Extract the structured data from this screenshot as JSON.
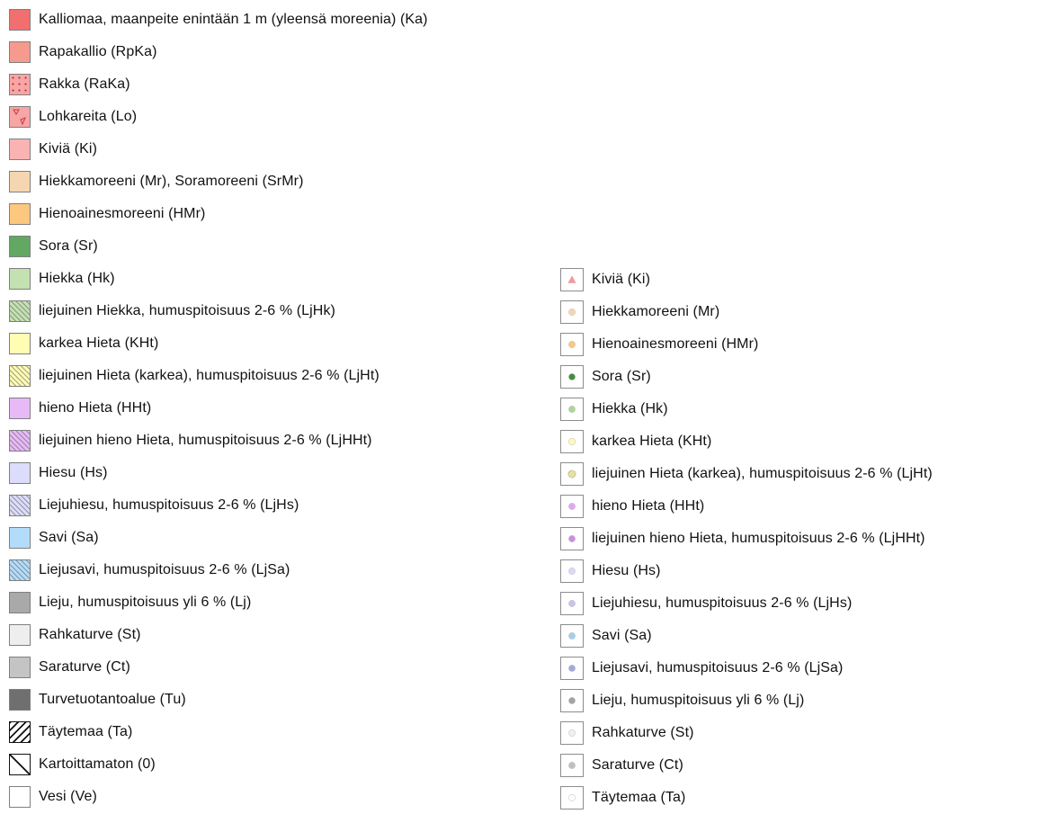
{
  "legend_left": [
    {
      "label": "Kalliomaa, maanpeite enintään 1 m (yleensä moreenia) (Ka)",
      "color": "#f26f6f",
      "pattern": "solid"
    },
    {
      "label": "Rapakallio (RpKa)",
      "color": "#f59a8c",
      "pattern": "solid"
    },
    {
      "label": "Rakka (RaKa)",
      "color": "#f7a5a5",
      "pattern": "dots"
    },
    {
      "label": "Lohkareita (Lo)",
      "color": "#f7a5a5",
      "pattern": "triangles"
    },
    {
      "label": "Kiviä (Ki)",
      "color": "#f9b3b3",
      "pattern": "solid"
    },
    {
      "label": "Hiekkamoreeni (Mr), Soramoreeni (SrMr)",
      "color": "#f6d6b0",
      "pattern": "solid"
    },
    {
      "label": "Hienoainesmoreeni (HMr)",
      "color": "#fcc77e",
      "pattern": "solid"
    },
    {
      "label": "Sora (Sr)",
      "color": "#62a862",
      "pattern": "solid"
    },
    {
      "label": "Hiekka (Hk)",
      "color": "#c3e1b1",
      "pattern": "solid"
    },
    {
      "label": "liejuinen Hiekka, humuspitoisuus 2-6 % (LjHk)",
      "color": "#c3e1b1",
      "pattern": "hatch"
    },
    {
      "label": "karkea Hieta (KHt)",
      "color": "#fffcb3",
      "pattern": "solid"
    },
    {
      "label": "liejuinen Hieta (karkea), humuspitoisuus 2-6 % (LjHt)",
      "color": "#fffcb3",
      "pattern": "hatch"
    },
    {
      "label": "hieno Hieta (HHt)",
      "color": "#e7b9f6",
      "pattern": "solid"
    },
    {
      "label": "liejuinen hieno Hieta, humuspitoisuus 2-6 % (LjHHt)",
      "color": "#e7b9f6",
      "pattern": "hatch"
    },
    {
      "label": "Hiesu (Hs)",
      "color": "#dcdcfb",
      "pattern": "solid"
    },
    {
      "label": "Liejuhiesu, humuspitoisuus 2-6 % (LjHs)",
      "color": "#dcdcfb",
      "pattern": "hatch"
    },
    {
      "label": "Savi (Sa)",
      "color": "#b3dcfa",
      "pattern": "solid"
    },
    {
      "label": "Liejusavi, humuspitoisuus 2-6 % (LjSa)",
      "color": "#b3dcfa",
      "pattern": "hatch"
    },
    {
      "label": "Lieju, humuspitoisuus yli 6 % (Lj)",
      "color": "#a9a9a9",
      "pattern": "solid"
    },
    {
      "label": "Rahkaturve (St)",
      "color": "#eeeeee",
      "pattern": "solid"
    },
    {
      "label": "Saraturve (Ct)",
      "color": "#c4c4c4",
      "pattern": "solid"
    },
    {
      "label": "Turvetuotantoalue (Tu)",
      "color": "#6f6f6f",
      "pattern": "solid"
    },
    {
      "label": "Täytemaa (Ta)",
      "color": "#ffffff",
      "pattern": "dense-black-hatch"
    },
    {
      "label": "Kartoittamaton (0)",
      "color": "#ffffff",
      "pattern": "single-diagonal"
    },
    {
      "label": "Vesi (Ve)",
      "color": "#ffffff",
      "pattern": "solid"
    }
  ],
  "legend_right": [
    {
      "label": "Kiviä (Ki)",
      "color": "#f29a9a",
      "marker": "triangle"
    },
    {
      "label": "Hiekkamoreeni (Mr)",
      "color": "#f6d6b0",
      "marker": "dot"
    },
    {
      "label": "Hienoainesmoreeni (HMr)",
      "color": "#fcc77e",
      "marker": "dot"
    },
    {
      "label": "Sora (Sr)",
      "color": "#3f8f3f",
      "marker": "dot"
    },
    {
      "label": "Hiekka (Hk)",
      "color": "#a9d798",
      "marker": "dot"
    },
    {
      "label": "karkea Hieta (KHt)",
      "color": "#fffab0",
      "marker": "dot"
    },
    {
      "label": "liejuinen Hieta (karkea), humuspitoisuus 2-6 % (LjHt)",
      "color": "#f3ef9c",
      "marker": "hatched-dot"
    },
    {
      "label": "hieno Hieta (HHt)",
      "color": "#e2a6f4",
      "marker": "dot"
    },
    {
      "label": "liejuinen hieno Hieta, humuspitoisuus 2-6 % (LjHHt)",
      "color": "#c98fe4",
      "marker": "dot"
    },
    {
      "label": "Hiesu (Hs)",
      "color": "#d9d9f9",
      "marker": "dot"
    },
    {
      "label": "Liejuhiesu, humuspitoisuus 2-6 % (LjHs)",
      "color": "#c4c4f0",
      "marker": "dot"
    },
    {
      "label": "Savi (Sa)",
      "color": "#9fd0f5",
      "marker": "dot"
    },
    {
      "label": "Liejusavi, humuspitoisuus 2-6 % (LjSa)",
      "color": "#a7a7e0",
      "marker": "dot"
    },
    {
      "label": "Lieju, humuspitoisuus yli 6 % (Lj)",
      "color": "#a3a3a3",
      "marker": "dot"
    },
    {
      "label": "Rahkaturve (St)",
      "color": "#f0f0f0",
      "marker": "dot"
    },
    {
      "label": "Saraturve (Ct)",
      "color": "#c0c0c0",
      "marker": "dot"
    },
    {
      "label": "Täytemaa (Ta)",
      "color": "#ffffff",
      "marker": "dot"
    }
  ]
}
